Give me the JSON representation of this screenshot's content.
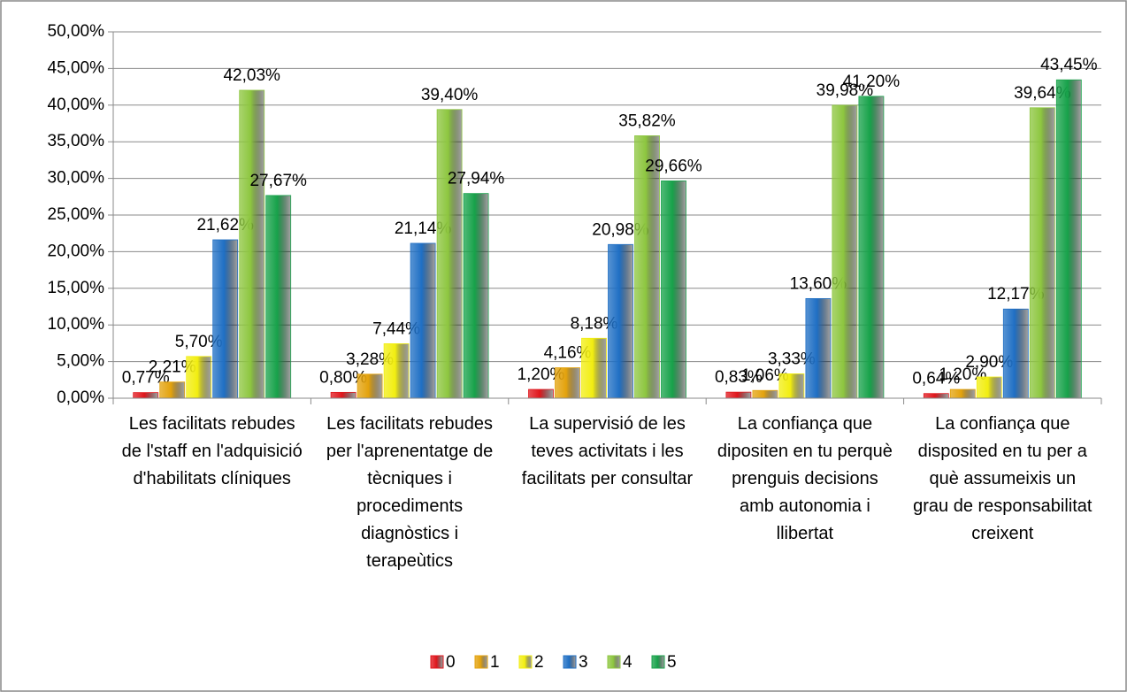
{
  "chart_data": {
    "type": "bar",
    "categories": [
      "Les facilitats rebudes de l'staff en l'adquisició d'habilitats clíniques",
      "Les facilitats rebudes per l'aprenentatge de tècniques i procediments diagnòstics i terapeùtics",
      "La supervisió de les teves activitats i les facilitats per consultar",
      "La confiança que dipositen en tu perquè prenguis decisions amb autonomia i llibertat",
      "La confiança que disposited en tu per a què assumeixis un grau de responsabilitat creixent"
    ],
    "series": [
      {
        "name": "0",
        "color": "#e0161c",
        "values": [
          0.77,
          0.8,
          1.2,
          0.83,
          0.64
        ],
        "value_labels": [
          "0,77%",
          "0,80%",
          "1,20%",
          "0,83%",
          "0,64%"
        ]
      },
      {
        "name": "1",
        "color": "#e3a20c",
        "values": [
          2.21,
          3.28,
          4.16,
          1.06,
          1.2
        ],
        "value_labels": [
          "2,21%",
          "3,28%",
          "4,16%",
          "1,06%",
          "1,20%"
        ]
      },
      {
        "name": "2",
        "color": "#f2ee10",
        "values": [
          5.7,
          7.44,
          8.18,
          3.33,
          2.9
        ],
        "value_labels": [
          "5,70%",
          "7,44%",
          "8,18%",
          "3,33%",
          "2,90%"
        ]
      },
      {
        "name": "3",
        "color": "#1f6fc4",
        "values": [
          21.62,
          21.14,
          20.98,
          13.6,
          12.17
        ],
        "value_labels": [
          "21,62%",
          "21,14%",
          "20,98%",
          "13,60%",
          "12,17%"
        ]
      },
      {
        "name": "4",
        "color": "#8dc63f",
        "values": [
          42.03,
          39.4,
          35.82,
          39.98,
          39.64
        ],
        "value_labels": [
          "42,03%",
          "39,40%",
          "35,82%",
          "39,98%",
          "39,64%"
        ]
      },
      {
        "name": "5",
        "color": "#17a24a",
        "values": [
          27.67,
          27.94,
          29.66,
          41.2,
          43.45
        ],
        "value_labels": [
          "27,67%",
          "27,94%",
          "29,66%",
          "41,20%",
          "43,45%"
        ]
      }
    ],
    "ylim": [
      0,
      50
    ],
    "yticks": [
      {
        "value": 0,
        "label": "0,00%"
      },
      {
        "value": 5,
        "label": "5,00%"
      },
      {
        "value": 10,
        "label": "10,00%"
      },
      {
        "value": 15,
        "label": "15,00%"
      },
      {
        "value": 20,
        "label": "20,00%"
      },
      {
        "value": 25,
        "label": "25,00%"
      },
      {
        "value": 30,
        "label": "30,00%"
      },
      {
        "value": 35,
        "label": "35,00%"
      },
      {
        "value": 40,
        "label": "40,00%"
      },
      {
        "value": 45,
        "label": "45,00%"
      },
      {
        "value": 50,
        "label": "50,00%"
      }
    ],
    "grid": true,
    "legend": "bottom"
  }
}
